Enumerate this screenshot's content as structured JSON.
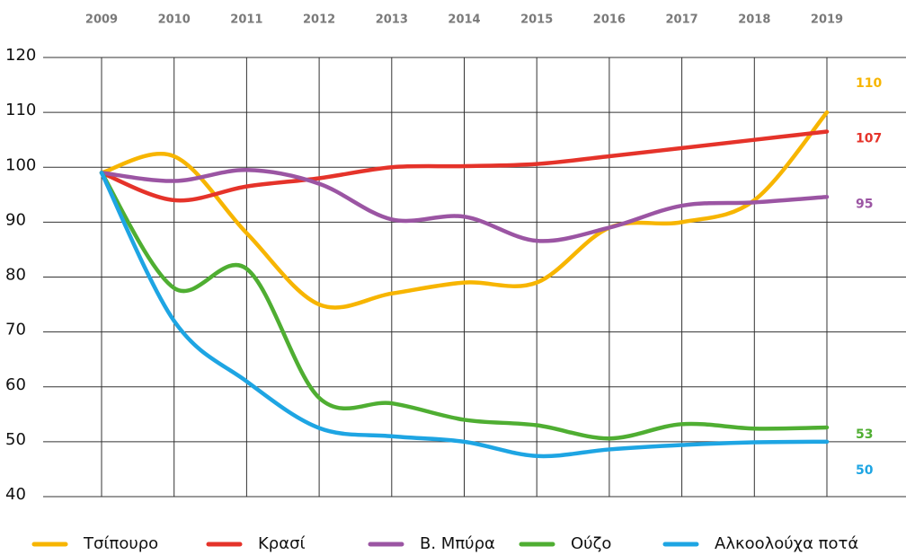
{
  "chart_data": {
    "type": "line",
    "x": [
      2009,
      2010,
      2011,
      2012,
      2013,
      2014,
      2015,
      2016,
      2017,
      2018,
      2019
    ],
    "xlim": [
      2009,
      2019
    ],
    "xticks": [
      2009,
      2010,
      2011,
      2012,
      2013,
      2014,
      2015,
      2016,
      2017,
      2018,
      2019
    ],
    "ylim": [
      40,
      120
    ],
    "yticks": [
      40,
      50,
      60,
      70,
      80,
      90,
      100,
      110,
      120
    ],
    "grid": true,
    "legend": "bottom",
    "series": [
      {
        "name": "Τσίπουρο",
        "color": "#f7b500",
        "values": [
          99,
          102,
          88,
          75,
          77,
          79,
          79,
          89,
          90,
          94,
          110
        ],
        "value_labels": [
          null,
          null,
          null,
          null,
          null,
          null,
          null,
          null,
          null,
          null,
          "110"
        ]
      },
      {
        "name": "Κρασί",
        "color": "#e5332a",
        "values": [
          99,
          94,
          96.5,
          98,
          100,
          100.2,
          100.6,
          102,
          103.5,
          105,
          106.5
        ],
        "value_labels": [
          null,
          null,
          null,
          null,
          null,
          null,
          null,
          null,
          null,
          null,
          "107"
        ]
      },
      {
        "name": "Β. Μπύρα",
        "color": "#9b55a3",
        "values": [
          99,
          97.5,
          99.5,
          97,
          90.5,
          91,
          86.6,
          89,
          93,
          93.6,
          94.6
        ],
        "value_labels": [
          null,
          null,
          null,
          null,
          null,
          null,
          null,
          null,
          null,
          null,
          "95"
        ]
      },
      {
        "name": "Ούζο",
        "color": "#4fae32",
        "values": [
          99,
          78,
          81.5,
          58,
          57,
          54,
          53,
          50.6,
          53.2,
          52.4,
          52.6
        ],
        "value_labels": [
          null,
          null,
          null,
          null,
          null,
          null,
          null,
          null,
          null,
          null,
          "53"
        ]
      },
      {
        "name": "Αλκοολούχα ποτά",
        "color": "#1ea5e3",
        "values": [
          99,
          72,
          61,
          52.5,
          51,
          50,
          47.4,
          48.6,
          49.4,
          49.9,
          50
        ],
        "value_labels": [
          null,
          null,
          null,
          null,
          null,
          null,
          null,
          null,
          null,
          null,
          "50"
        ]
      }
    ]
  }
}
